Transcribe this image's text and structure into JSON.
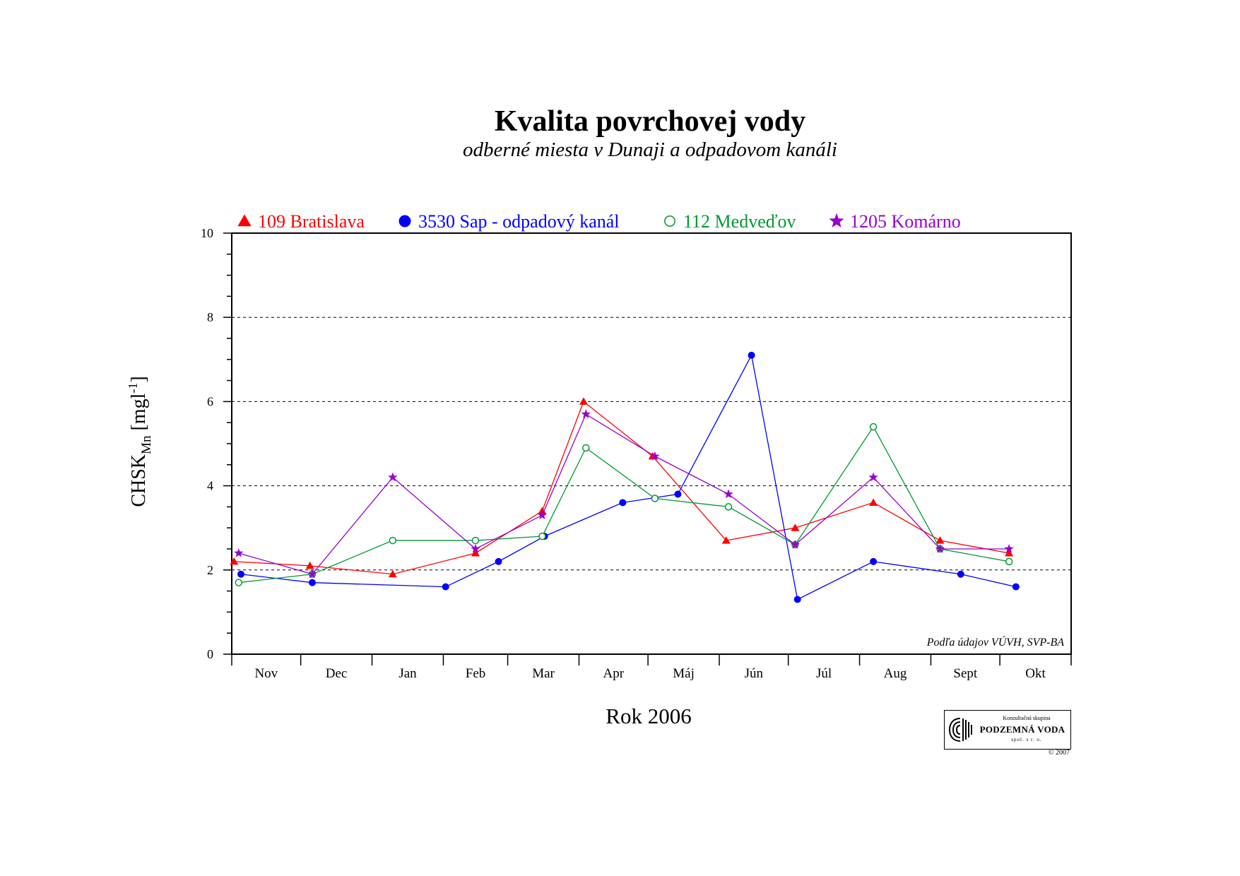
{
  "chart_data": {
    "type": "line",
    "title": "Kvalita povrchovej vody",
    "subtitle": "odberné miesta v Dunaji a odpadovom kanáli",
    "xlabel": "Rok 2006",
    "ylabel": "CHSK",
    "ylabel_subscript": "Mn",
    "ylabel_unit_open": " [mgl",
    "ylabel_unit_sup": "-1",
    "ylabel_unit_close": "]",
    "x_type": "date",
    "x_range": [
      "2005-11-01",
      "2006-11-01"
    ],
    "ylim": [
      0,
      10
    ],
    "yticks": [
      0,
      2,
      4,
      6,
      8,
      10
    ],
    "categories": [
      "Nov",
      "Dec",
      "Jan",
      "Feb",
      "Mar",
      "Apr",
      "Máj",
      "Jún",
      "Júl",
      "Aug",
      "Sept",
      "Okt"
    ],
    "grid": "horizontal dashed at 2, 4, 6, 8",
    "legend": "top",
    "note": "Podľa údajov VÚVH, SVP-BA",
    "series": [
      {
        "name": "109 Bratislava",
        "color": "#ff0000",
        "marker": "triangle",
        "points": [
          [
            "2005-11-02",
            2.2
          ],
          [
            "2005-12-05",
            2.1
          ],
          [
            "2006-01-10",
            1.9
          ],
          [
            "2006-02-15",
            2.4
          ],
          [
            "2006-03-16",
            3.4
          ],
          [
            "2006-04-03",
            6.0
          ],
          [
            "2006-05-03",
            4.7
          ],
          [
            "2006-06-04",
            2.7
          ],
          [
            "2006-07-04",
            3.0
          ],
          [
            "2006-08-07",
            3.6
          ],
          [
            "2006-09-05",
            2.7
          ],
          [
            "2006-10-05",
            2.4
          ]
        ]
      },
      {
        "name": "3530 Sap - odpadový kanál",
        "color": "#0000ff",
        "marker": "circle",
        "points": [
          [
            "2005-11-05",
            1.9
          ],
          [
            "2005-12-06",
            1.7
          ],
          [
            "2006-02-02",
            1.6
          ],
          [
            "2006-02-25",
            2.2
          ],
          [
            "2006-03-17",
            2.8
          ],
          [
            "2006-04-20",
            3.6
          ],
          [
            "2006-05-14",
            3.8
          ],
          [
            "2006-06-15",
            7.1
          ],
          [
            "2006-07-05",
            1.3
          ],
          [
            "2006-08-07",
            2.2
          ],
          [
            "2006-09-14",
            1.9
          ],
          [
            "2006-10-08",
            1.6
          ]
        ]
      },
      {
        "name": "112 Medveďov",
        "color": "#009933",
        "marker": "circle-open",
        "points": [
          [
            "2005-11-04",
            1.7
          ],
          [
            "2005-12-06",
            1.9
          ],
          [
            "2006-01-10",
            2.7
          ],
          [
            "2006-02-15",
            2.7
          ],
          [
            "2006-03-16",
            2.8
          ],
          [
            "2006-04-04",
            4.9
          ],
          [
            "2006-05-04",
            3.7
          ],
          [
            "2006-06-05",
            3.5
          ],
          [
            "2006-07-04",
            2.6
          ],
          [
            "2006-08-07",
            5.4
          ],
          [
            "2006-09-05",
            2.5
          ],
          [
            "2006-10-05",
            2.2
          ]
        ]
      },
      {
        "name": "1205 Komárno",
        "color": "#9900cc",
        "marker": "star",
        "points": [
          [
            "2005-11-04",
            2.4
          ],
          [
            "2005-12-06",
            1.9
          ],
          [
            "2006-01-10",
            4.2
          ],
          [
            "2006-02-15",
            2.5
          ],
          [
            "2006-03-16",
            3.3
          ],
          [
            "2006-04-04",
            5.7
          ],
          [
            "2006-05-04",
            4.7
          ],
          [
            "2006-06-05",
            3.8
          ],
          [
            "2006-07-04",
            2.6
          ],
          [
            "2006-08-07",
            4.2
          ],
          [
            "2006-09-05",
            2.5
          ],
          [
            "2006-10-05",
            2.5
          ]
        ]
      }
    ]
  },
  "logo": {
    "line1": "Konzultačná skupina",
    "line2": "PODZEMNÁ VODA",
    "line3": "spol. s r. o.",
    "copyright": "© 2007"
  }
}
